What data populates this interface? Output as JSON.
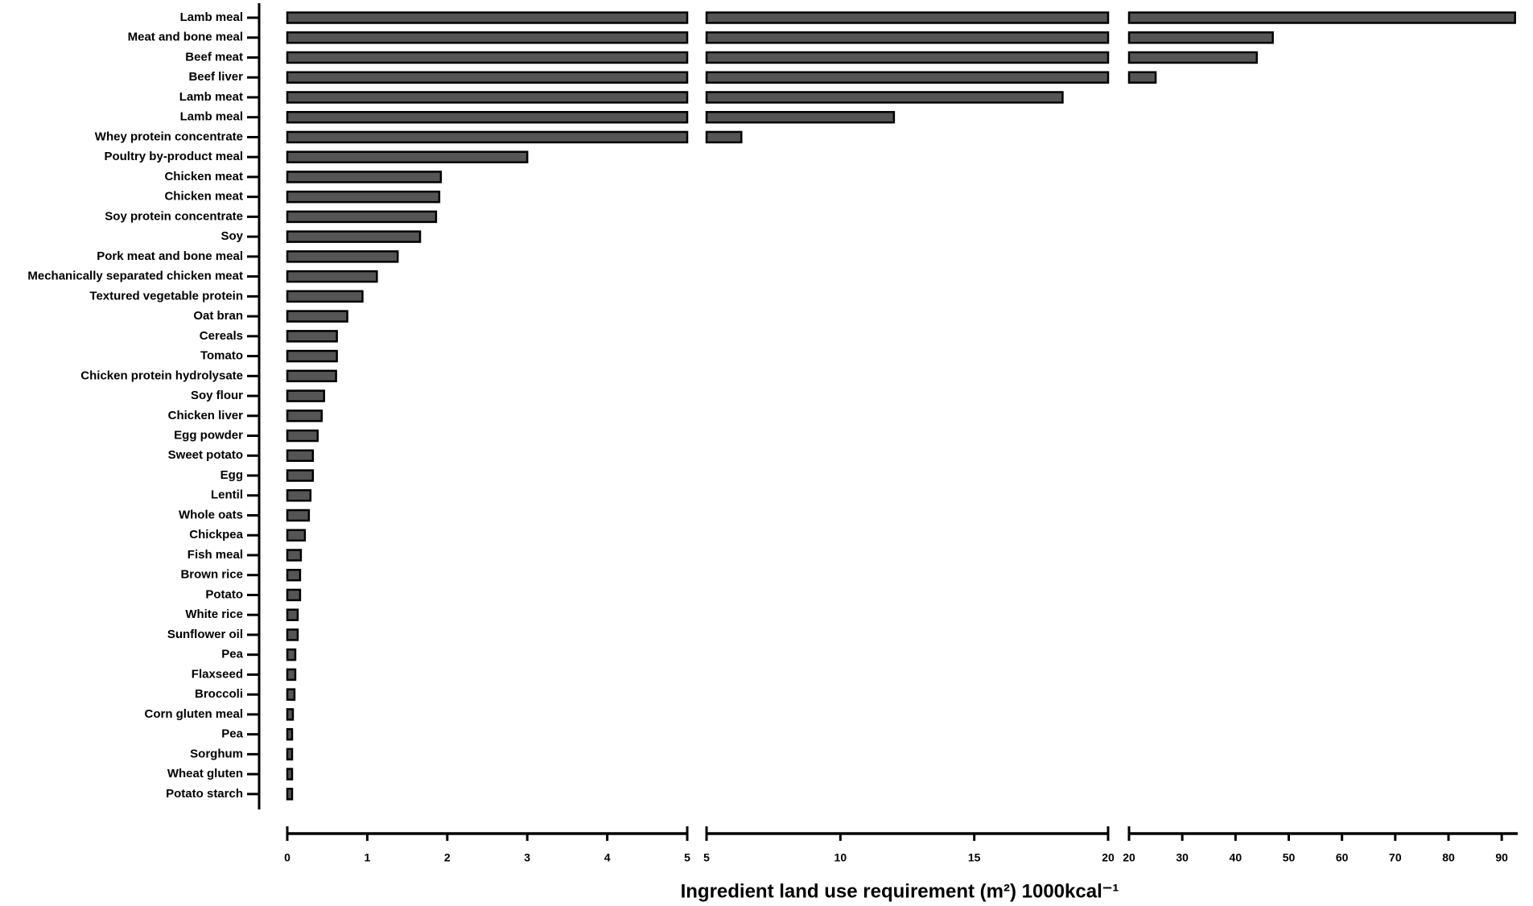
{
  "chart_data": {
    "type": "bar",
    "orientation": "horizontal",
    "x_label": "Ingredient land use requirement (m²) 1000kcal⁻¹",
    "categories": [
      "Lamb meal",
      "Meat and bone meal",
      "Beef meat",
      "Beef liver",
      "Lamb meat",
      "Lamb meal",
      "Whey protein concentrate",
      "Poultry by-product meal",
      "Chicken meat",
      "Chicken meat",
      "Soy protein concentrate",
      "Soy",
      "Pork meat and bone meal",
      "Mechanically separated chicken meat",
      "Textured vegetable protein",
      "Oat bran",
      "Cereals",
      "Tomato",
      "Chicken protein hydrolysate",
      "Soy flour",
      "Chicken liver",
      "Egg powder",
      "Sweet potato",
      "Egg",
      "Lentil",
      "Whole oats",
      "Chickpea",
      "Fish meal",
      "Brown rice",
      "Potato",
      "White rice",
      "Sunflower oil",
      "Pea",
      "Flaxseed",
      "Broccoli",
      "Corn gluten meal",
      "Pea",
      "Sorghum",
      "Wheat gluten",
      "Potato starch"
    ],
    "values": [
      92.5,
      47,
      44,
      25,
      18.3,
      12,
      6.3,
      3,
      1.92,
      1.9,
      1.86,
      1.66,
      1.38,
      1.12,
      0.94,
      0.75,
      0.62,
      0.62,
      0.61,
      0.46,
      0.43,
      0.38,
      0.32,
      0.32,
      0.29,
      0.27,
      0.22,
      0.17,
      0.16,
      0.16,
      0.13,
      0.13,
      0.1,
      0.1,
      0.09,
      0.07,
      0.06,
      0.06,
      0.06,
      0.06
    ],
    "color": "#555555",
    "axis_segments": [
      {
        "xlim": [
          0,
          5
        ],
        "xticks": [
          0,
          1,
          2,
          3,
          4,
          5
        ]
      },
      {
        "xlim": [
          5,
          20
        ],
        "xticks": [
          5,
          10,
          15,
          20
        ]
      },
      {
        "xlim": [
          20,
          93
        ],
        "xticks": [
          20,
          30,
          40,
          50,
          60,
          70,
          80,
          90
        ]
      }
    ]
  }
}
